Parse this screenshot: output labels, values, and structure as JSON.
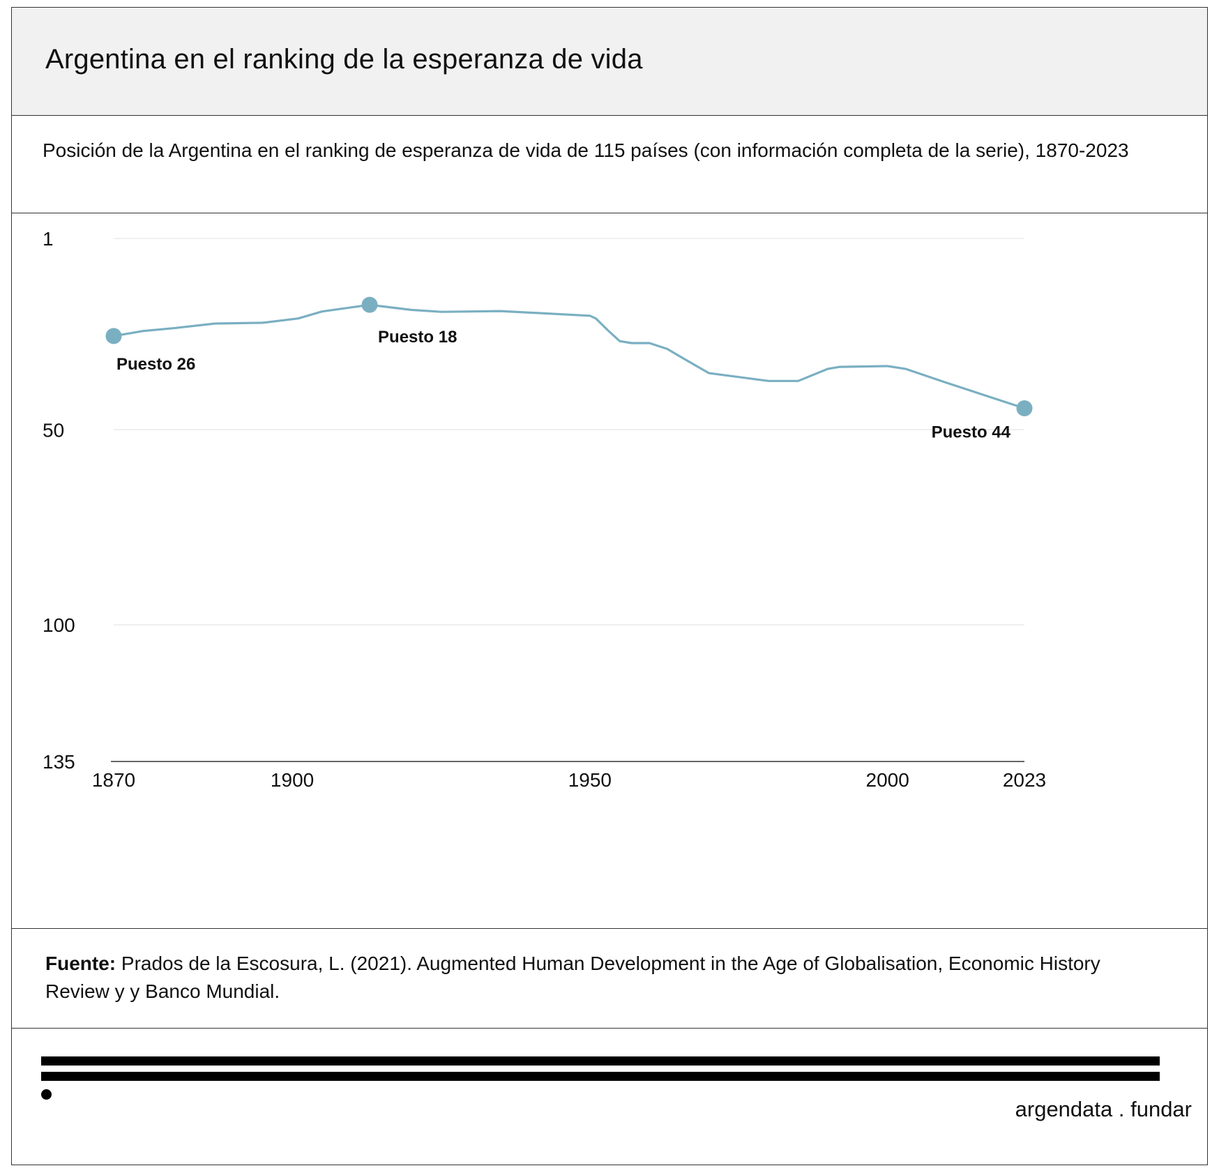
{
  "header": {
    "title": "Argentina en el ranking de la esperanza de vida"
  },
  "subtitle": "Posición de la Argentina en el ranking de esperanza de vida de 115 países (con información completa de la serie), 1870-2023",
  "source": {
    "label": "Fuente:",
    "text": " Prados de la Escosura, L. (2021). Augmented Human Development in the Age of Globalisation, Economic History Review y y Banco Mundial."
  },
  "brand": "argendata . fundar",
  "colors": {
    "line": "#7aafc2",
    "grid": "#e6e6e6",
    "axis": "#333333"
  },
  "chart_data": {
    "type": "line",
    "title": "",
    "xlabel": "",
    "ylabel": "",
    "y_reversed": true,
    "ylim": [
      1,
      135
    ],
    "xlim": [
      1870,
      2023
    ],
    "x_ticks": [
      1870,
      1900,
      1950,
      2000,
      2023
    ],
    "y_ticks": [
      1,
      50,
      100,
      135
    ],
    "grid": "horizontal",
    "series": [
      {
        "x": [
          1870,
          1875,
          1880,
          1887,
          1895,
          1901,
          1905,
          1913,
          1920,
          1925,
          1935,
          1950,
          1951,
          1953,
          1955,
          1957,
          1960,
          1963,
          1966,
          1970,
          1980,
          1985,
          1990,
          1992,
          2000,
          2003,
          2010,
          2023
        ],
        "y": [
          26,
          24.7,
          24,
          22.8,
          22.6,
          21.5,
          19.7,
          18,
          19.3,
          19.8,
          19.6,
          20.8,
          21.5,
          24.5,
          27.3,
          27.8,
          27.8,
          29.3,
          32,
          35.5,
          37.5,
          37.5,
          34.4,
          33.9,
          33.7,
          34.4,
          38,
          44.5
        ]
      }
    ],
    "annotations": [
      {
        "x": 1870,
        "y": 26,
        "label": "Puesto 26"
      },
      {
        "x": 1913,
        "y": 18,
        "label": "Puesto 18"
      },
      {
        "x": 2023,
        "y": 44.5,
        "label": "Puesto 44"
      }
    ]
  }
}
